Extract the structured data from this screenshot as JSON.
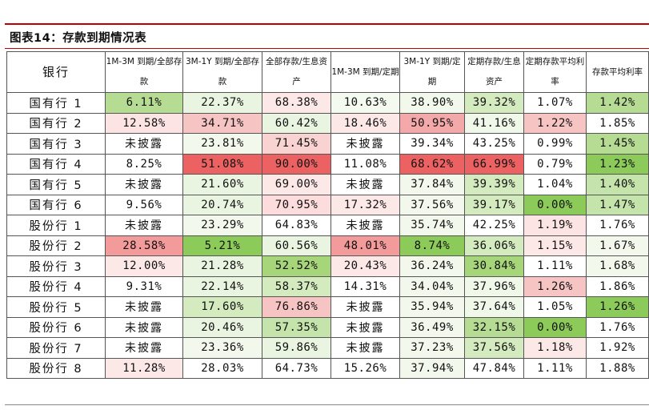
{
  "title": "图表14：存款到期情况表",
  "headers": [
    "银行",
    "1M-3M 到期/全部存款",
    "3M-1Y 到期/全部存款",
    "全部存款/生息资产",
    "1M-3M 到期/定期",
    "3M-1Y 到期/定期",
    "定期存款/生息资产",
    "定期存款平均利率",
    "存款平均利率"
  ],
  "rows": [
    {
      "bank": "国有行 1",
      "cells": [
        "6.11%",
        "22.37%",
        "68.38%",
        "10.63%",
        "38.90%",
        "39.32%",
        "1.07%",
        "1.42%"
      ]
    },
    {
      "bank": "国有行 2",
      "cells": [
        "12.58%",
        "34.71%",
        "60.42%",
        "18.46%",
        "50.95%",
        "41.16%",
        "1.22%",
        "1.85%"
      ]
    },
    {
      "bank": "国有行 3",
      "cells": [
        "未披露",
        "23.81%",
        "71.45%",
        "未披露",
        "39.34%",
        "43.25%",
        "0.99%",
        "1.45%"
      ]
    },
    {
      "bank": "国有行 4",
      "cells": [
        "8.25%",
        "51.08%",
        "90.00%",
        "11.08%",
        "68.62%",
        "66.99%",
        "0.79%",
        "1.23%"
      ]
    },
    {
      "bank": "国有行 5",
      "cells": [
        "未披露",
        "21.60%",
        "69.00%",
        "未披露",
        "37.84%",
        "39.39%",
        "1.04%",
        "1.40%"
      ]
    },
    {
      "bank": "国有行 6",
      "cells": [
        "9.56%",
        "20.74%",
        "70.95%",
        "17.32%",
        "37.56%",
        "39.17%",
        "0.00%",
        "1.47%"
      ]
    },
    {
      "bank": "股份行 1",
      "cells": [
        "未披露",
        "23.29%",
        "64.83%",
        "未披露",
        "35.74%",
        "42.25%",
        "1.19%",
        "1.76%"
      ]
    },
    {
      "bank": "股份行 2",
      "cells": [
        "28.58%",
        "5.21%",
        "60.56%",
        "48.01%",
        "8.74%",
        "36.06%",
        "1.15%",
        "1.67%"
      ]
    },
    {
      "bank": "股份行 3",
      "cells": [
        "12.00%",
        "21.28%",
        "52.52%",
        "20.43%",
        "36.24%",
        "30.84%",
        "1.11%",
        "1.68%"
      ]
    },
    {
      "bank": "股份行 4",
      "cells": [
        "9.31%",
        "22.14%",
        "58.37%",
        "14.31%",
        "34.04%",
        "37.96%",
        "1.26%",
        "1.86%"
      ]
    },
    {
      "bank": "股份行 5",
      "cells": [
        "未披露",
        "17.60%",
        "76.86%",
        "未披露",
        "35.94%",
        "37.64%",
        "1.05%",
        "1.26%"
      ]
    },
    {
      "bank": "股份行 6",
      "cells": [
        "未披露",
        "20.46%",
        "57.35%",
        "未披露",
        "36.49%",
        "32.15%",
        "0.00%",
        "1.76%"
      ]
    },
    {
      "bank": "股份行 7",
      "cells": [
        "未披露",
        "23.36%",
        "59.86%",
        "未披露",
        "37.23%",
        "37.56%",
        "1.18%",
        "1.92%"
      ]
    },
    {
      "bank": "股份行 8",
      "cells": [
        "11.28%",
        "28.03%",
        "64.73%",
        "15.26%",
        "37.94%",
        "47.84%",
        "1.11%",
        "1.88%"
      ]
    }
  ],
  "cell_colors": [
    [
      "#b6dc94",
      "#eaf5e1",
      "#fde8e8",
      "#f4faf0",
      "#f2f9ec",
      "#d4ebbf",
      "#ffffff",
      "#b6dc94"
    ],
    [
      "#fde4e4",
      "#f7c4c4",
      "#eaf5e1",
      "#fde8e8",
      "#f3a9a9",
      "#f0f8e9",
      "#f7c4c4",
      "#ffffff"
    ],
    [
      "#ffffff",
      "#f2f9ec",
      "#f9d2d2",
      "#ffffff",
      "#ffffff",
      "#ffffff",
      "#ffffff",
      "#b6dc94"
    ],
    [
      "#ffffff",
      "#ec6262",
      "#ec6262",
      "#ffffff",
      "#ec6262",
      "#ec6262",
      "#ffffff",
      "#8cca5a"
    ],
    [
      "#ffffff",
      "#eaf5e1",
      "#fde8e8",
      "#ffffff",
      "#f2f9ec",
      "#d4ebbf",
      "#ffffff",
      "#c5e4ab"
    ],
    [
      "#ffffff",
      "#eaf5e1",
      "#fcdcdc",
      "#fde8e8",
      "#f2f9ec",
      "#d4ebbf",
      "#8cca5a",
      "#c5e4ab"
    ],
    [
      "#ffffff",
      "#f2f9ec",
      "#ffffff",
      "#ffffff",
      "#f2f9ec",
      "#ffffff",
      "#fde4e4",
      "#ffffff"
    ],
    [
      "#f39a9a",
      "#8cca5a",
      "#eaf5e1",
      "#f39a9a",
      "#8cca5a",
      "#d4ebbf",
      "#fde8e8",
      "#f2f9ec"
    ],
    [
      "#fde8e8",
      "#eaf5e1",
      "#a6d57a",
      "#fde8e8",
      "#f2f9ec",
      "#a6d57a",
      "#ffffff",
      "#f2f9ec"
    ],
    [
      "#ffffff",
      "#eaf5e1",
      "#d4ebbf",
      "#ffffff",
      "#f2f9ec",
      "#f0f8e9",
      "#f7c4c4",
      "#ffffff"
    ],
    [
      "#ffffff",
      "#d4ebbf",
      "#f7c4c4",
      "#ffffff",
      "#f2f9ec",
      "#f0f8e9",
      "#ffffff",
      "#8cca5a"
    ],
    [
      "#ffffff",
      "#eaf5e1",
      "#c5e4ab",
      "#ffffff",
      "#f2f9ec",
      "#b6dc94",
      "#8cca5a",
      "#ffffff"
    ],
    [
      "#ffffff",
      "#f2f9ec",
      "#eaf5e1",
      "#ffffff",
      "#f2f9ec",
      "#d4ebbf",
      "#fde8e8",
      "#ffffff"
    ],
    [
      "#fde8e8",
      "#ffffff",
      "#ffffff",
      "#ffffff",
      "#f2f9ec",
      "#ffffff",
      "#ffffff",
      "#ffffff"
    ]
  ],
  "colors": {
    "title_rule": "#c00000",
    "border": "#555555"
  }
}
